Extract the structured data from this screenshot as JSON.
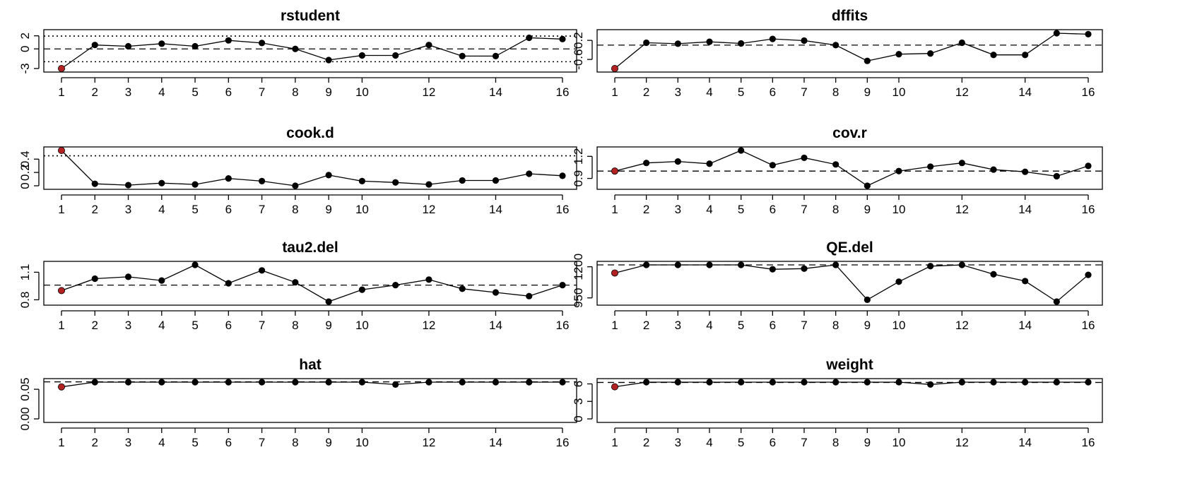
{
  "chart_data": [
    {
      "type": "line",
      "title": "rstudent",
      "x": [
        1,
        2,
        3,
        4,
        5,
        6,
        7,
        8,
        9,
        10,
        11,
        12,
        13,
        14,
        15,
        16
      ],
      "values": [
        -3.0,
        0.6,
        0.4,
        0.8,
        0.4,
        1.3,
        0.9,
        0.0,
        -1.7,
        -1.0,
        -1.0,
        0.6,
        -1.1,
        -1.1,
        1.7,
        1.5
      ],
      "ylim": [
        -3,
        2.4
      ],
      "yticks": [
        -3,
        0,
        2
      ],
      "xticks": [
        1,
        2,
        3,
        4,
        5,
        6,
        7,
        8,
        9,
        10,
        12,
        14,
        16
      ],
      "ref_dashed": [
        0
      ],
      "ref_dotted": [
        -1.96,
        1.96
      ],
      "highlight": [
        1
      ],
      "highlight_color": "#b22222"
    },
    {
      "type": "line",
      "title": "dffits",
      "x": [
        1,
        2,
        3,
        4,
        5,
        6,
        7,
        8,
        9,
        10,
        11,
        12,
        13,
        14,
        15,
        16
      ],
      "values": [
        -0.98,
        0.1,
        0.06,
        0.14,
        0.07,
        0.26,
        0.19,
        0.0,
        -0.66,
        -0.38,
        -0.35,
        0.1,
        -0.41,
        -0.41,
        0.5,
        0.46
      ],
      "ylim": [
        -0.98,
        0.5
      ],
      "yticks": [
        -0.6,
        0.2
      ],
      "xticks": [
        1,
        2,
        3,
        4,
        5,
        6,
        7,
        8,
        9,
        10,
        12,
        14,
        16
      ],
      "ref_dashed": [
        0.0
      ],
      "ref_dotted": [],
      "highlight": [
        1
      ],
      "highlight_color": "#b22222"
    },
    {
      "type": "line",
      "title": "cook.d",
      "x": [
        1,
        2,
        3,
        4,
        5,
        6,
        7,
        8,
        9,
        10,
        11,
        12,
        13,
        14,
        15,
        16
      ],
      "values": [
        0.53,
        0.03,
        0.01,
        0.04,
        0.02,
        0.11,
        0.07,
        0.0,
        0.16,
        0.07,
        0.05,
        0.02,
        0.08,
        0.08,
        0.18,
        0.15
      ],
      "ylim": [
        0,
        0.53
      ],
      "yticks": [
        0.0,
        0.2,
        0.4
      ],
      "xticks": [
        1,
        2,
        3,
        4,
        5,
        6,
        7,
        8,
        9,
        10,
        12,
        14,
        16
      ],
      "ref_dashed": [],
      "ref_dotted": [
        0.45
      ],
      "highlight": [
        1
      ],
      "highlight_color": "#b22222"
    },
    {
      "type": "line",
      "title": "cov.r",
      "x": [
        1,
        2,
        3,
        4,
        5,
        6,
        7,
        8,
        9,
        10,
        11,
        12,
        13,
        14,
        15,
        16
      ],
      "values": [
        1.0,
        1.11,
        1.13,
        1.1,
        1.28,
        1.08,
        1.18,
        1.09,
        0.8,
        1.0,
        1.06,
        1.11,
        1.02,
        0.99,
        0.93,
        1.07
      ],
      "ylim": [
        0.8,
        1.28
      ],
      "yticks": [
        0.9,
        1.2
      ],
      "xticks": [
        1,
        2,
        3,
        4,
        5,
        6,
        7,
        8,
        9,
        10,
        12,
        14,
        16
      ],
      "ref_dashed": [
        1.0
      ],
      "ref_dotted": [],
      "highlight": [
        1
      ],
      "highlight_color": "#b22222"
    },
    {
      "type": "line",
      "title": "tau2.del",
      "x": [
        1,
        2,
        3,
        4,
        5,
        6,
        7,
        8,
        9,
        10,
        11,
        12,
        13,
        14,
        15,
        16
      ],
      "values": [
        0.9,
        1.03,
        1.05,
        1.01,
        1.18,
        0.98,
        1.12,
        0.99,
        0.78,
        0.91,
        0.96,
        1.02,
        0.92,
        0.88,
        0.84,
        0.96
      ],
      "ylim": [
        0.78,
        1.18
      ],
      "yticks": [
        0.8,
        1.1
      ],
      "xticks": [
        1,
        2,
        3,
        4,
        5,
        6,
        7,
        8,
        9,
        10,
        12,
        14,
        16
      ],
      "ref_dashed": [
        0.96
      ],
      "ref_dotted": [],
      "highlight": [
        1
      ],
      "highlight_color": "#b22222"
    },
    {
      "type": "line",
      "title": "QE.del",
      "x": [
        1,
        2,
        3,
        4,
        5,
        6,
        7,
        8,
        9,
        10,
        11,
        12,
        13,
        14,
        15,
        16
      ],
      "values": [
        1150,
        1215,
        1215,
        1215,
        1215,
        1180,
        1185,
        1215,
        935,
        1080,
        1205,
        1215,
        1140,
        1085,
        920,
        1135
      ],
      "ylim": [
        920,
        1215
      ],
      "yticks": [
        950,
        1200
      ],
      "xticks": [
        1,
        2,
        3,
        4,
        5,
        6,
        7,
        8,
        9,
        10,
        12,
        14,
        16
      ],
      "ref_dashed": [
        1215
      ],
      "ref_dotted": [],
      "highlight": [
        1
      ],
      "highlight_color": "#b22222"
    },
    {
      "type": "line",
      "title": "hat",
      "x": [
        1,
        2,
        3,
        4,
        5,
        6,
        7,
        8,
        9,
        10,
        11,
        12,
        13,
        14,
        15,
        16
      ],
      "values": [
        0.054,
        0.062,
        0.062,
        0.062,
        0.062,
        0.062,
        0.062,
        0.062,
        0.062,
        0.062,
        0.058,
        0.062,
        0.062,
        0.062,
        0.062,
        0.062
      ],
      "ylim": [
        0,
        0.062
      ],
      "yticks": [
        0.0,
        0.05
      ],
      "ytick_labels": [
        "0.00",
        "0.05"
      ],
      "xticks": [
        1,
        2,
        3,
        4,
        5,
        6,
        7,
        8,
        9,
        10,
        12,
        14,
        16
      ],
      "ref_dashed": [
        0.0625
      ],
      "ref_dotted": [],
      "highlight": [
        1
      ],
      "highlight_color": "#b22222"
    },
    {
      "type": "line",
      "title": "weight",
      "x": [
        1,
        2,
        3,
        4,
        5,
        6,
        7,
        8,
        9,
        10,
        11,
        12,
        13,
        14,
        15,
        16
      ],
      "values": [
        5.5,
        6.3,
        6.3,
        6.3,
        6.3,
        6.3,
        6.3,
        6.3,
        6.3,
        6.3,
        5.9,
        6.3,
        6.3,
        6.3,
        6.3,
        6.3
      ],
      "ylim": [
        0,
        6.3
      ],
      "yticks": [
        0,
        3,
        6
      ],
      "xticks": [
        1,
        2,
        3,
        4,
        5,
        6,
        7,
        8,
        9,
        10,
        12,
        14,
        16
      ],
      "ref_dashed": [
        6.25
      ],
      "ref_dotted": [],
      "highlight": [
        1
      ],
      "highlight_color": "#b22222"
    }
  ]
}
